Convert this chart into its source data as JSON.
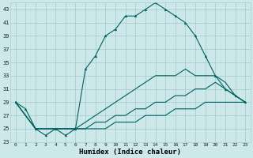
{
  "title": "",
  "xlabel": "Humidex (Indice chaleur)",
  "ylabel": "",
  "bg_color": "#cce8e8",
  "grid_color": "#aacece",
  "line_color": "#006060",
  "xlim": [
    -0.5,
    23.5
  ],
  "ylim": [
    23,
    44
  ],
  "yticks": [
    23,
    25,
    27,
    29,
    31,
    33,
    35,
    37,
    39,
    41,
    43
  ],
  "xticks": [
    0,
    1,
    2,
    3,
    4,
    5,
    6,
    7,
    8,
    9,
    10,
    11,
    12,
    13,
    14,
    15,
    16,
    17,
    18,
    19,
    20,
    21,
    22,
    23
  ],
  "series_main": [
    29,
    28,
    25,
    24,
    25,
    24,
    25,
    34,
    36,
    39,
    40,
    42,
    42,
    43,
    44,
    43,
    42,
    41,
    39,
    36,
    33,
    31,
    30,
    29
  ],
  "series_upper": [
    29,
    27,
    25,
    25,
    25,
    25,
    25,
    26,
    27,
    28,
    29,
    30,
    31,
    32,
    33,
    33,
    33,
    34,
    33,
    33,
    33,
    32,
    30,
    29
  ],
  "series_mid": [
    29,
    27,
    25,
    25,
    25,
    25,
    25,
    25,
    26,
    26,
    27,
    27,
    28,
    28,
    29,
    29,
    30,
    30,
    31,
    31,
    32,
    31,
    30,
    29
  ],
  "series_low": [
    29,
    27,
    25,
    25,
    25,
    25,
    25,
    25,
    25,
    25,
    26,
    26,
    26,
    27,
    27,
    27,
    28,
    28,
    28,
    29,
    29,
    29,
    29,
    29
  ]
}
